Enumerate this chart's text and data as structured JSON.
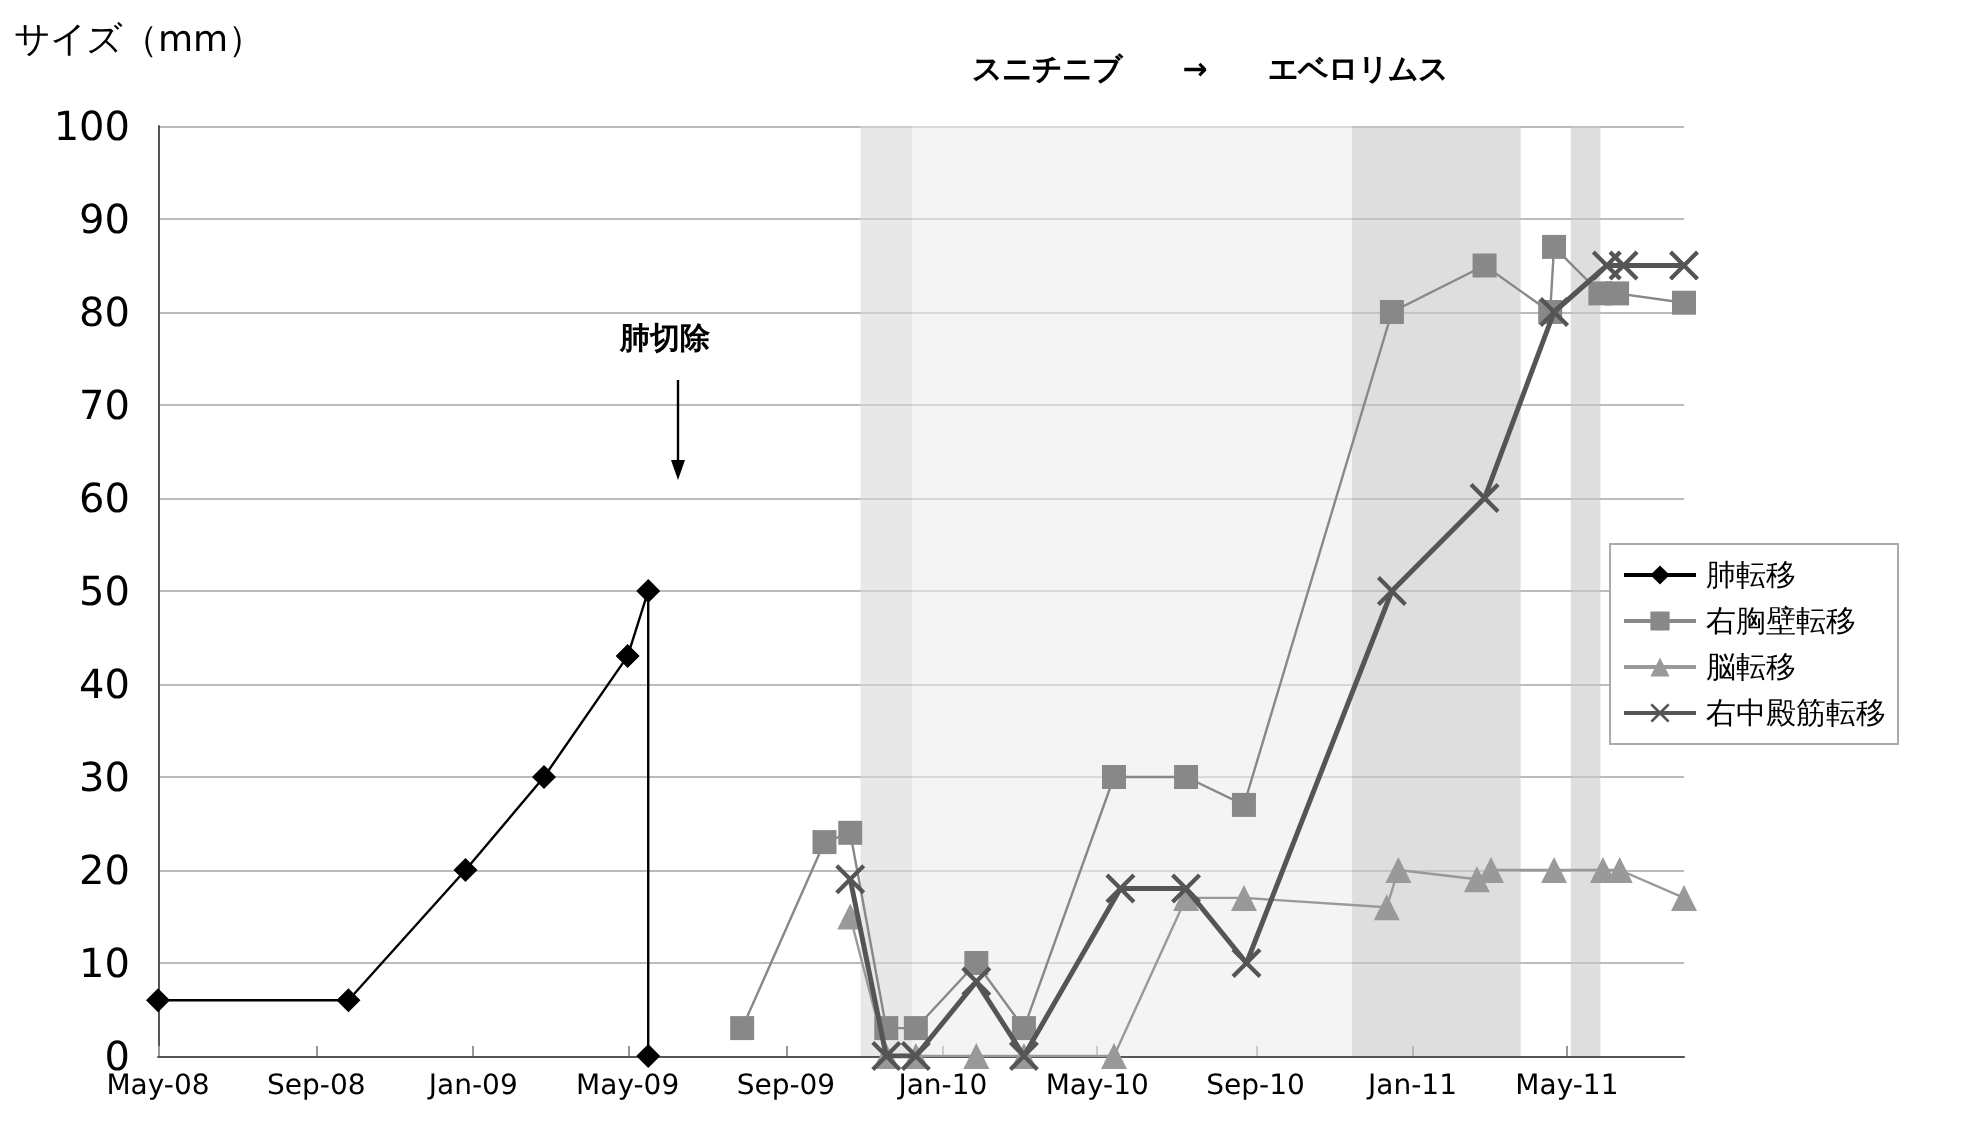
{
  "chart_data": {
    "type": "line",
    "subtitle": "スニチニブ　　→　　エベロリムス",
    "ylabel": "サイズ（mm）",
    "xlim": [
      "2008-05-01",
      "2011-07-31"
    ],
    "xticks": [
      {
        "value": "2008-05-01",
        "label": "May-08"
      },
      {
        "value": "2008-09-01",
        "label": "Sep-08"
      },
      {
        "value": "2009-01-01",
        "label": "Jan-09"
      },
      {
        "value": "2009-05-01",
        "label": "May-09"
      },
      {
        "value": "2009-09-01",
        "label": "Sep-09"
      },
      {
        "value": "2010-01-01",
        "label": "Jan-10"
      },
      {
        "value": "2010-05-01",
        "label": "May-10"
      },
      {
        "value": "2010-09-01",
        "label": "Sep-10"
      },
      {
        "value": "2011-01-01",
        "label": "Jan-11"
      },
      {
        "value": "2011-05-01",
        "label": "May-11"
      }
    ],
    "ylim": [
      0,
      100
    ],
    "yticks": [
      0,
      10,
      20,
      30,
      40,
      50,
      60,
      70,
      80,
      90,
      100
    ],
    "grid": "y",
    "legend": "right",
    "series": [
      {
        "name": "肺転移",
        "color": "#000000",
        "marker": "diamond",
        "x": [
          "2008-05-01",
          "2008-09-26",
          "2008-12-26",
          "2009-02-25",
          "2009-05-01",
          "2009-05-17",
          "2009-05-17"
        ],
        "values": [
          6,
          6,
          20,
          30,
          43,
          50,
          0
        ]
      },
      {
        "name": "右胸壁転移",
        "color": "#888888",
        "marker": "square",
        "x": [
          "2009-07-29",
          "2009-10-01",
          "2009-10-21",
          "2009-11-18",
          "2009-12-11",
          "2010-01-27",
          "2010-03-05",
          "2010-05-14",
          "2010-07-09",
          "2010-08-23",
          "2010-12-16",
          "2011-02-26",
          "2011-04-18",
          "2011-04-21",
          "2011-05-27",
          "2011-06-09",
          "2011-07-31"
        ],
        "values": [
          3,
          23,
          24,
          3,
          3,
          10,
          3,
          30,
          30,
          27,
          80,
          85,
          80,
          87,
          82,
          82,
          81
        ]
      },
      {
        "name": "脳転移",
        "color": "#999999",
        "marker": "triangle",
        "x": [
          "2009-10-21",
          "2009-11-18",
          "2009-12-11",
          "2010-01-27",
          "2010-03-05",
          "2010-05-14",
          "2010-07-09",
          "2010-08-23",
          "2010-12-12",
          "2010-12-21",
          "2011-02-20",
          "2011-03-03",
          "2011-04-21",
          "2011-05-29",
          "2011-06-11",
          "2011-07-31"
        ],
        "values": [
          15,
          0,
          0,
          0,
          0,
          0,
          17,
          17,
          16,
          20,
          19,
          20,
          20,
          20,
          20,
          17
        ]
      },
      {
        "name": "右中殿筋転移",
        "color": "#555555",
        "marker": "cross",
        "x": [
          "2009-10-21",
          "2009-11-18",
          "2009-12-11",
          "2010-01-27",
          "2010-03-05",
          "2010-05-19",
          "2010-07-09",
          "2010-08-25",
          "2010-12-16",
          "2011-02-26",
          "2011-04-21",
          "2011-06-01",
          "2011-06-14",
          "2011-07-31"
        ],
        "values": [
          19,
          0,
          0,
          8,
          0,
          18,
          18,
          10,
          50,
          60,
          80,
          85,
          85,
          85
        ]
      }
    ],
    "bands": [
      {
        "axis": "x",
        "from": "2009-10-29",
        "to": "2009-12-08",
        "color": "#d8d8d8"
      },
      {
        "axis": "x",
        "from": "2009-12-08",
        "to": "2010-11-15",
        "color": "#ececec"
      },
      {
        "axis": "x",
        "from": "2010-11-15",
        "to": "2011-03-26",
        "color": "#c8c8c8"
      },
      {
        "axis": "x",
        "from": "2011-05-04",
        "to": "2011-05-27",
        "color": "#c8c8c8"
      }
    ],
    "annotations": [
      "肺切除"
    ]
  }
}
